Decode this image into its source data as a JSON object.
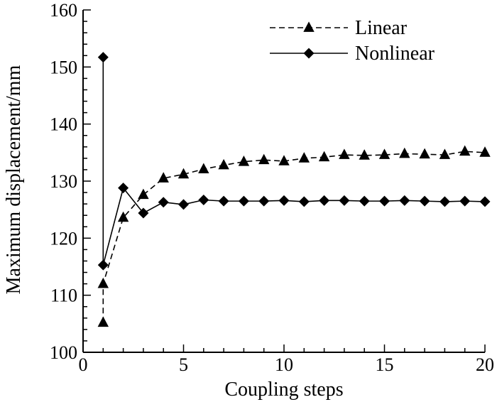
{
  "chart_data": {
    "type": "line",
    "xlabel": "Coupling steps",
    "ylabel": "Maximum displacement/mm",
    "xlim": [
      0,
      20
    ],
    "ylim": [
      100,
      160
    ],
    "xticks": [
      0,
      5,
      10,
      15,
      20
    ],
    "yticks": [
      100,
      110,
      120,
      130,
      140,
      150,
      160
    ],
    "grid": false,
    "legend_position": "top-right",
    "series": [
      {
        "name": "Linear",
        "line_style": "dashed",
        "marker": "triangle",
        "points": [
          [
            1,
            105.2
          ],
          [
            1,
            112.0
          ],
          [
            2,
            123.6
          ],
          [
            3,
            127.6
          ],
          [
            4,
            130.5
          ],
          [
            5,
            131.2
          ],
          [
            6,
            132.1
          ],
          [
            7,
            132.8
          ],
          [
            8,
            133.4
          ],
          [
            9,
            133.7
          ],
          [
            10,
            133.5
          ],
          [
            11,
            134.0
          ],
          [
            12,
            134.2
          ],
          [
            13,
            134.6
          ],
          [
            14,
            134.5
          ],
          [
            15,
            134.6
          ],
          [
            16,
            134.8
          ],
          [
            17,
            134.7
          ],
          [
            18,
            134.6
          ],
          [
            19,
            135.2
          ],
          [
            20,
            135.0
          ]
        ]
      },
      {
        "name": "Nonlinear",
        "line_style": "solid",
        "marker": "diamond",
        "points": [
          [
            1,
            151.7
          ],
          [
            1,
            115.3
          ],
          [
            2,
            128.8
          ],
          [
            3,
            124.4
          ],
          [
            4,
            126.3
          ],
          [
            5,
            125.9
          ],
          [
            6,
            126.7
          ],
          [
            7,
            126.5
          ],
          [
            8,
            126.5
          ],
          [
            9,
            126.5
          ],
          [
            10,
            126.6
          ],
          [
            11,
            126.4
          ],
          [
            12,
            126.6
          ],
          [
            13,
            126.6
          ],
          [
            14,
            126.5
          ],
          [
            15,
            126.5
          ],
          [
            16,
            126.6
          ],
          [
            17,
            126.5
          ],
          [
            18,
            126.4
          ],
          [
            19,
            126.5
          ],
          [
            20,
            126.4
          ]
        ]
      }
    ]
  }
}
